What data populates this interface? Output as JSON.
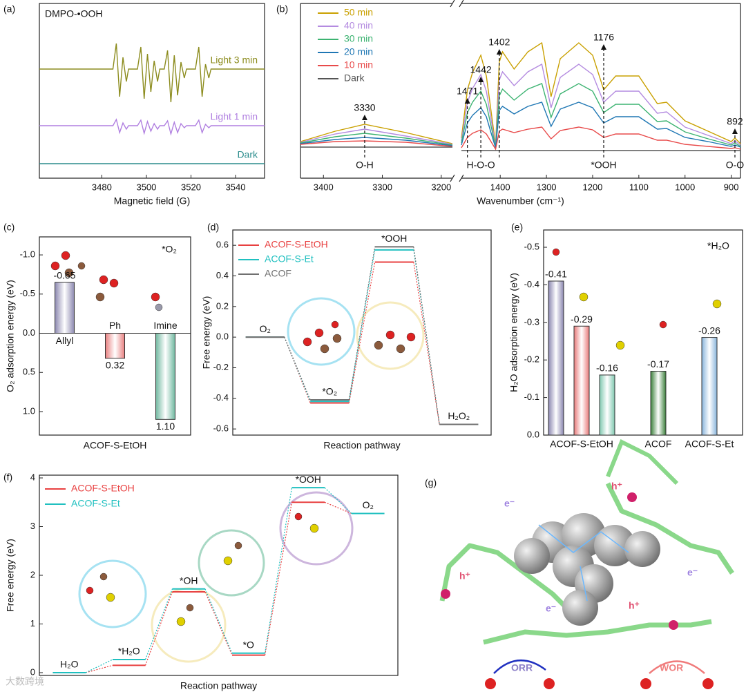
{
  "chart_data": [
    {
      "panel": "(a)",
      "type": "line",
      "annotation": "DMPO-•OOH",
      "xlabel": "Magnetic field (G)",
      "xlim": [
        3452,
        3553
      ],
      "xticks": [
        3480,
        3500,
        3520,
        3540
      ],
      "ylim": [
        0,
        253
      ],
      "legend": "inline",
      "x": [
        3452,
        3485,
        3486.5,
        3488,
        3489.5,
        3491,
        3492,
        3496,
        3497.5,
        3499,
        3500.5,
        3502,
        3503.5,
        3505,
        3506,
        3508,
        3509.5,
        3511,
        3512.5,
        3514,
        3515.5,
        3517,
        3518,
        3522,
        3523.5,
        3525,
        3526.5,
        3528,
        3529,
        3553
      ],
      "series": [
        {
          "name": "Light 3 min",
          "color": "#8c8c1e",
          "values": [
            158,
            158,
            195,
            118,
            175,
            140,
            158,
            158,
            190,
            115,
            180,
            125,
            170,
            140,
            158,
            158,
            185,
            110,
            178,
            120,
            168,
            145,
            158,
            158,
            190,
            118,
            165,
            145,
            158,
            158
          ]
        },
        {
          "name": "Light 1 min",
          "color": "#b07fe0",
          "values": [
            76,
            76,
            85,
            66,
            80,
            71,
            76,
            76,
            84,
            65,
            82,
            68,
            79,
            71,
            76,
            76,
            83,
            64,
            81,
            66,
            79,
            73,
            76,
            76,
            84,
            66,
            78,
            73,
            76,
            76
          ]
        },
        {
          "name": "Dark",
          "color": "#2a8c8c",
          "values": [
            21,
            21,
            21,
            21,
            21,
            21,
            21,
            21,
            21,
            21,
            21,
            21,
            21,
            21,
            21,
            21,
            21,
            21,
            21,
            21,
            21,
            21,
            21,
            21,
            21,
            21,
            21,
            21,
            21,
            21
          ]
        }
      ]
    },
    {
      "panel": "(b)",
      "type": "line",
      "xlabel": "Wavenumber (cm⁻¹)",
      "xlim": [
        [
          3439,
          3181
        ],
        [
          1484,
          880
        ]
      ],
      "xticks": [
        3400,
        3300,
        3200,
        1400,
        1300,
        1200,
        1100,
        1000,
        900
      ],
      "ylim": [
        0,
        253
      ],
      "legend": "upper left",
      "x": [
        3439,
        3380,
        3330,
        3260,
        3181,
        1484,
        1471,
        1460,
        1442,
        1430,
        1420,
        1410,
        1402,
        1395,
        1370,
        1340,
        1310,
        1290,
        1270,
        1230,
        1200,
        1176,
        1150,
        1100,
        1060,
        1040,
        1000,
        950,
        900,
        892,
        880
      ],
      "series": [
        {
          "name": "50 min",
          "color": "#c9a000",
          "values": [
            53,
            68,
            78,
            66,
            50,
            58,
            128,
            153,
            178,
            148,
            98,
            48,
            168,
            183,
            158,
            183,
            196,
            118,
            173,
            196,
            178,
            128,
            148,
            148,
            108,
            110,
            83,
            68,
            53,
            58,
            50
          ]
        },
        {
          "name": "40 min",
          "color": "#b48be0",
          "values": [
            52,
            64,
            71,
            61,
            49,
            54,
            110,
            130,
            150,
            126,
            86,
            46,
            142,
            154,
            134,
            154,
            165,
            102,
            146,
            165,
            150,
            110,
            126,
            126,
            94,
            96,
            74,
            62,
            50,
            54,
            48
          ]
        },
        {
          "name": "30 min",
          "color": "#3cb371",
          "values": [
            51,
            60,
            65,
            58,
            48,
            51,
            95,
            110,
            126,
            107,
            76,
            45,
            119,
            129,
            113,
            129,
            137,
            88,
            122,
            137,
            126,
            95,
            107,
            107,
            82,
            83,
            67,
            57,
            48,
            51,
            46
          ]
        },
        {
          "name": "20 min",
          "color": "#1f77b4",
          "values": [
            50,
            56,
            59,
            55,
            47,
            48,
            80,
            91,
            102,
            89,
            66,
            44,
            98,
            104,
            93,
            104,
            110,
            75,
            100,
            110,
            102,
            80,
            89,
            89,
            71,
            72,
            59,
            53,
            46,
            48,
            45
          ]
        },
        {
          "name": "10 min",
          "color": "#e84a4a",
          "values": [
            49,
            53,
            54,
            52,
            46,
            44,
            59,
            65,
            70,
            64,
            53,
            42,
            68,
            71,
            66,
            71,
            74,
            57,
            69,
            74,
            70,
            59,
            64,
            64,
            55,
            55,
            49,
            46,
            43,
            44,
            42
          ]
        },
        {
          "name": "Dark",
          "color": "#555555",
          "values": [
            45,
            45,
            45,
            45,
            45,
            40,
            40,
            40,
            40,
            40,
            40,
            40,
            40,
            40,
            40,
            40,
            40,
            40,
            40,
            40,
            40,
            40,
            40,
            40,
            40,
            40,
            40,
            40,
            40,
            40,
            40
          ]
        }
      ],
      "annotations": [
        {
          "text": "3330",
          "x": 3330
        },
        {
          "text": "1471",
          "x": 1471
        },
        {
          "text": "1442",
          "x": 1442
        },
        {
          "text": "1402",
          "x": 1402
        },
        {
          "text": "1176",
          "x": 1176
        },
        {
          "text": "892",
          "x": 892
        }
      ],
      "bands": [
        {
          "text": "O-H",
          "x": 3330
        },
        {
          "text": "H-O-O",
          "x": 1442
        },
        {
          "text": "*OOH",
          "x": 1176
        },
        {
          "text": "O-O",
          "x": 892
        }
      ]
    },
    {
      "panel": "(c)",
      "type": "bar",
      "annotation": "*O₂",
      "ylabel": "O₂ adsorption energy (eV)",
      "xlabel": "ACOF-S-EtOH",
      "categories": [
        "Allyl",
        "Ph",
        "Imine"
      ],
      "values": [
        -0.65,
        0.32,
        1.1
      ],
      "value_labels": [
        "-0.65",
        "0.32",
        "1.10"
      ],
      "colors": [
        "#8c88b0",
        "#e88080",
        "#70b8a0"
      ],
      "ylim": [
        -1.23,
        1.3
      ],
      "yinvert": true,
      "yticks": [
        {
          "value": -1.0,
          "label": "-1.0"
        },
        -0.5,
        {
          "value": 0,
          "label": "0.0"
        },
        0.5,
        {
          "value": 1.0,
          "label": "1.0"
        }
      ]
    },
    {
      "panel": "(d)",
      "type": "energy",
      "xlabel": "Reaction pathway",
      "ylabel": "Free energy (eV)",
      "legend": "upper left",
      "states": [
        "O₂",
        "*O₂",
        "*OOH",
        "H₂O₂"
      ],
      "ylim": [
        -0.64,
        0.7
      ],
      "yticks": [
        -0.6,
        -0.4,
        -0.2,
        {
          "value": 0,
          "label": "0.0"
        },
        0.2,
        0.4,
        0.6
      ],
      "series": [
        {
          "name": "ACOF-S-EtOH",
          "color": "#e84040",
          "values": [
            0,
            -0.43,
            0.49,
            -0.57
          ]
        },
        {
          "name": "ACOF-S-Et",
          "color": "#20c0c0",
          "values": [
            0,
            -0.42,
            0.57,
            -0.57
          ]
        },
        {
          "name": "ACOF",
          "color": "#707070",
          "values": [
            0,
            -0.41,
            0.59,
            -0.57
          ]
        }
      ]
    },
    {
      "panel": "(e)",
      "type": "groupbar",
      "annotation": "*H₂O",
      "ylabel": "H₂O adsorption energy (eV)",
      "categories": [
        "ACOF-S-EtOH",
        "ACOF",
        "ACOF-S-Et"
      ],
      "values": [
        [
          -0.41,
          -0.29,
          -0.16
        ],
        [
          -0.17
        ],
        [
          -0.26
        ]
      ],
      "colors": [
        [
          "#8a86b0",
          "#e87a7a",
          "#80c8b0"
        ],
        [
          "#3a803a"
        ],
        [
          "#88b4dc"
        ]
      ],
      "ylim": [
        -0.546,
        0
      ],
      "yinvert": true,
      "yticks": [
        -0.5,
        -0.4,
        -0.3,
        -0.2,
        -0.1,
        {
          "value": 0,
          "label": "0.0"
        }
      ]
    },
    {
      "panel": "(f)",
      "type": "energy",
      "xlabel": "Reaction pathway",
      "ylabel": "Free energy (eV)",
      "legend": "upper left",
      "states": [
        "H₂O",
        "*H₂O",
        "*OH",
        "*O",
        "*OOH",
        "O₂"
      ],
      "ylim": [
        -0.057,
        4.057
      ],
      "yticks": [
        0,
        1,
        2,
        3,
        4
      ],
      "series": [
        {
          "name": "ACOF-S-EtOH",
          "color": "#e84040",
          "values": [
            0,
            0.15,
            1.66,
            0.36,
            3.5,
            3.27
          ]
        },
        {
          "name": "ACOF-S-Et",
          "color": "#20c0c0",
          "values": [
            0,
            0.27,
            1.72,
            0.4,
            3.8,
            3.27
          ]
        }
      ]
    }
  ],
  "illustration": {
    "panel": "(g)",
    "labels": [
      "e⁻",
      "h⁺",
      "h⁺",
      "e⁻",
      "e⁻",
      "h⁺",
      "ORR",
      "WOR"
    ]
  },
  "watermark": "大数跨境"
}
